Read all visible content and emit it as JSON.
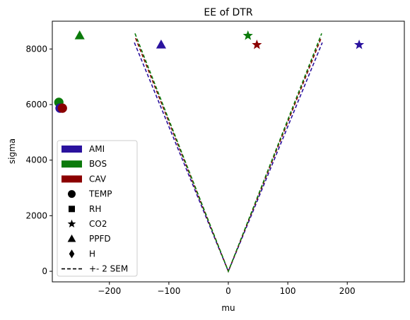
{
  "chart_data": {
    "type": "scatter",
    "title": "EE of DTR",
    "xlabel": "mu",
    "ylabel": "sigma",
    "xlim": [
      -296,
      296
    ],
    "ylim": [
      -380,
      9000
    ],
    "xticks": [
      -200,
      -100,
      0,
      100,
      200
    ],
    "yticks": [
      0,
      2000,
      4000,
      6000,
      8000
    ],
    "grid": false,
    "legend_position": "lower-left",
    "colors": {
      "AMI": "#2a129e",
      "BOS": "#0b7a0b",
      "CAV": "#8b0000"
    },
    "legend": {
      "sites": [
        {
          "label": "AMI",
          "color": "#2a129e"
        },
        {
          "label": "BOS",
          "color": "#0b7a0b"
        },
        {
          "label": "CAV",
          "color": "#8b0000"
        }
      ],
      "variables": [
        {
          "label": "TEMP",
          "marker": "circle"
        },
        {
          "label": "RH",
          "marker": "square"
        },
        {
          "label": "CO2",
          "marker": "star"
        },
        {
          "label": "PPFD",
          "marker": "triangle"
        },
        {
          "label": "H",
          "marker": "diamond"
        }
      ],
      "sem_label": "+- 2 SEM"
    },
    "points": [
      {
        "site": "BOS",
        "variable": "PPFD",
        "x": -250,
        "y": 8480
      },
      {
        "site": "AMI",
        "variable": "PPFD",
        "x": -113,
        "y": 8150
      },
      {
        "site": "BOS",
        "variable": "CO2",
        "x": 33,
        "y": 8480
      },
      {
        "site": "CAV",
        "variable": "CO2",
        "x": 48,
        "y": 8150
      },
      {
        "site": "AMI",
        "variable": "CO2",
        "x": 220,
        "y": 8150
      },
      {
        "site": "BOS",
        "variable": "TEMP",
        "x": -285,
        "y": 6080
      },
      {
        "site": "AMI",
        "variable": "TEMP",
        "x": -283,
        "y": 5870
      },
      {
        "site": "CAV",
        "variable": "TEMP",
        "x": -279,
        "y": 5870
      }
    ],
    "sem_lines": [
      {
        "site": "AMI",
        "top_y": 8230,
        "half_width": 158
      },
      {
        "site": "CAV",
        "top_y": 8390,
        "half_width": 156
      },
      {
        "site": "BOS",
        "top_y": 8560,
        "half_width": 157
      }
    ]
  }
}
